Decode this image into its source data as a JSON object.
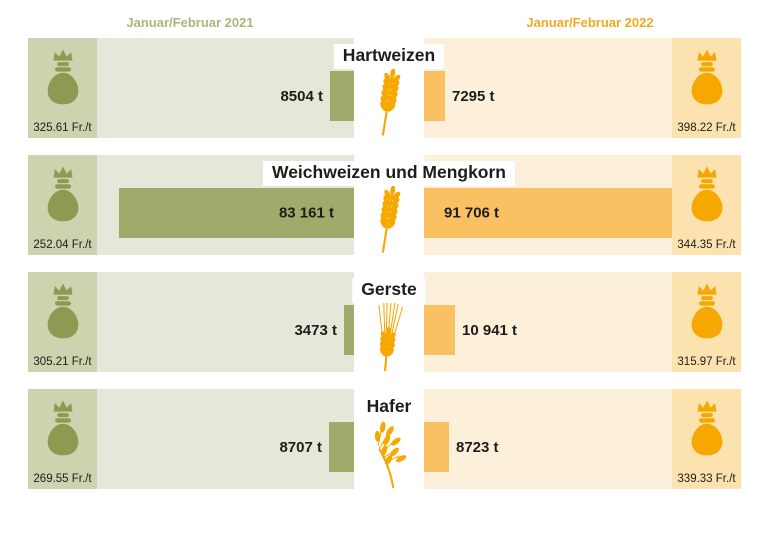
{
  "header": {
    "left_label": "Januar/Februar 2021",
    "right_label": "Januar/Februar 2022"
  },
  "chart_data": {
    "type": "bar",
    "layout": "diverging-horizontal-pictogram, legend as column headers, grid off",
    "unit": "t",
    "price_unit": "Fr./t",
    "tons_per_pixel": 354,
    "categories": [
      "Hartweizen",
      "Weichweizen und Mengkorn",
      "Gerste",
      "Hafer"
    ],
    "series": [
      {
        "name": "Januar/Februar 2021",
        "tons": [
          8504,
          83161,
          3473,
          8707
        ],
        "price_fr_per_t": [
          325.61,
          252.04,
          305.21,
          269.55
        ]
      },
      {
        "name": "Januar/Februar 2022",
        "tons": [
          7295,
          91706,
          10941,
          8723
        ],
        "price_fr_per_t": [
          398.22,
          344.35,
          315.97,
          339.33
        ]
      }
    ]
  },
  "rows": [
    {
      "name": "Hartweizen",
      "icon": "wheat",
      "y2021": {
        "tons": 8504,
        "tons_label": "8504 t",
        "price_label": "325.61 Fr./t"
      },
      "y2022": {
        "tons": 7295,
        "tons_label": "7295 t",
        "price_label": "398.22 Fr./t"
      }
    },
    {
      "name": "Weichweizen und Mengkorn",
      "icon": "wheat",
      "y2021": {
        "tons": 83161,
        "tons_label": "83 161 t",
        "price_label": "252.04 Fr./t"
      },
      "y2022": {
        "tons": 91706,
        "tons_label": "91 706 t",
        "price_label": "344.35 Fr./t"
      }
    },
    {
      "name": "Gerste",
      "icon": "barley",
      "y2021": {
        "tons": 3473,
        "tons_label": "3473 t",
        "price_label": "305.21 Fr./t"
      },
      "y2022": {
        "tons": 10941,
        "tons_label": "10 941 t",
        "price_label": "315.97 Fr./t"
      }
    },
    {
      "name": "Hafer",
      "icon": "oat",
      "y2021": {
        "tons": 8707,
        "tons_label": "8707 t",
        "price_label": "269.55 Fr./t"
      },
      "y2022": {
        "tons": 8723,
        "tons_label": "8723 t",
        "price_label": "339.33 Fr./t"
      }
    }
  ],
  "colors": {
    "ink": "#1d1d1b",
    "green_dark": "#8d9b52",
    "green_bar": "#9fab6b",
    "green_bag_panel": "#cdd3ae",
    "green_panel": "#e5e8d8",
    "orange_dark": "#f6a800",
    "orange_bar": "#f9c161",
    "orange_bag_panel": "#fbe2ae",
    "orange_panel": "#fdf0db",
    "header_green": "#a6b87b",
    "header_orange": "#f3a81f"
  }
}
